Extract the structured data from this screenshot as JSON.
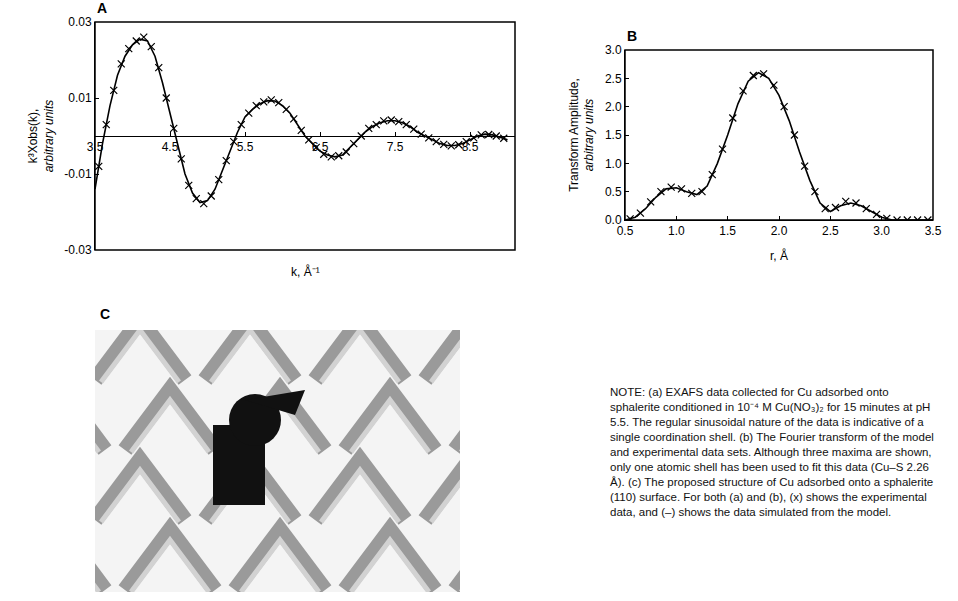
{
  "chart_data": [
    {
      "type": "scatter",
      "title": "A",
      "xlabel": "k, Å⁻¹",
      "ylabel": "k³Xobs(k), arbitrary units",
      "xlim": [
        3.5,
        9.1
      ],
      "xticks": [
        3.5,
        4.5,
        5.5,
        6.5,
        7.5,
        8.5
      ],
      "ylim": [
        -0.03,
        0.03
      ],
      "yticks": [
        -0.03,
        -0.01,
        0.01,
        0.03
      ],
      "grid": false,
      "series": [
        {
          "type": "scatter",
          "marker": "x",
          "color": "#000000",
          "x": [
            3.55,
            3.65,
            3.75,
            3.85,
            3.95,
            4.05,
            4.15,
            4.25,
            4.35,
            4.45,
            4.55,
            4.65,
            4.75,
            4.85,
            4.95,
            5.05,
            5.15,
            5.25,
            5.35,
            5.45,
            5.55,
            5.65,
            5.75,
            5.85,
            5.95,
            6.05,
            6.15,
            6.25,
            6.35,
            6.45,
            6.55,
            6.65,
            6.75,
            6.85,
            6.95,
            7.05,
            7.15,
            7.25,
            7.35,
            7.45,
            7.55,
            7.65,
            7.75,
            7.85,
            7.95,
            8.05,
            8.15,
            8.25,
            8.35,
            8.45,
            8.55,
            8.65,
            8.75,
            8.85,
            8.95
          ],
          "values": [
            -0.008,
            0.003,
            0.012,
            0.019,
            0.023,
            0.025,
            0.026,
            0.0235,
            0.018,
            0.01,
            0.002,
            -0.006,
            -0.013,
            -0.0165,
            -0.0178,
            -0.0158,
            -0.0115,
            -0.0065,
            -0.0015,
            0.003,
            0.006,
            0.008,
            0.009,
            0.0095,
            0.0088,
            0.007,
            0.0045,
            0.0015,
            -0.001,
            -0.003,
            -0.0048,
            -0.0055,
            -0.0052,
            -0.0042,
            -0.002,
            0.0,
            0.002,
            0.003,
            0.004,
            0.0042,
            0.0038,
            0.003,
            0.0018,
            0.0005,
            -0.0005,
            -0.0015,
            -0.0022,
            -0.0026,
            -0.0023,
            -0.0015,
            -0.0005,
            0.0003,
            0.0004,
            0.0,
            -0.0006
          ]
        },
        {
          "type": "line",
          "line_style": "solid",
          "color": "#000000",
          "x": [
            3.5,
            3.6,
            3.7,
            3.8,
            3.9,
            4.0,
            4.1,
            4.2,
            4.3,
            4.4,
            4.5,
            4.6,
            4.7,
            4.8,
            4.9,
            5.0,
            5.1,
            5.2,
            5.3,
            5.4,
            5.5,
            5.6,
            5.7,
            5.8,
            5.9,
            6.0,
            6.1,
            6.2,
            6.3,
            6.4,
            6.5,
            6.6,
            6.7,
            6.8,
            6.9,
            7.0,
            7.1,
            7.2,
            7.3,
            7.4,
            7.5,
            7.6,
            7.7,
            7.8,
            7.9,
            8.0,
            8.1,
            8.2,
            8.3,
            8.4,
            8.5,
            8.6,
            8.7,
            8.8,
            8.9,
            9.0
          ],
          "values": [
            -0.014,
            -0.002,
            0.008,
            0.016,
            0.021,
            0.024,
            0.0255,
            0.025,
            0.021,
            0.014,
            0.006,
            -0.002,
            -0.01,
            -0.015,
            -0.0175,
            -0.017,
            -0.014,
            -0.009,
            -0.004,
            0.001,
            0.005,
            0.007,
            0.0085,
            0.0093,
            0.0092,
            0.008,
            0.006,
            0.003,
            0.0,
            -0.002,
            -0.004,
            -0.005,
            -0.0055,
            -0.005,
            -0.003,
            -0.001,
            0.001,
            0.0025,
            0.0035,
            0.004,
            0.004,
            0.0035,
            0.0025,
            0.001,
            0.0,
            -0.001,
            -0.002,
            -0.0025,
            -0.0025,
            -0.002,
            -0.001,
            0.0,
            0.0005,
            0.0003,
            -0.0003,
            -0.001
          ]
        }
      ]
    },
    {
      "type": "scatter",
      "title": "B",
      "xlabel": "r, Å",
      "ylabel": "Transform Amplitude, arbitrary units",
      "xlim": [
        0.5,
        3.5
      ],
      "xticks": [
        {
          "value": 0.5,
          "label": "0.5"
        },
        {
          "value": 1.0,
          "label": "1.0"
        },
        {
          "value": 1.5,
          "label": "1.5"
        },
        {
          "value": 2.0,
          "label": "2.0"
        },
        {
          "value": 2.5,
          "label": "2.5"
        },
        {
          "value": 3.0,
          "label": "3.0"
        },
        {
          "value": 3.5,
          "label": "3.5"
        }
      ],
      "ylim": [
        0,
        3
      ],
      "yticks": [
        {
          "value": 0,
          "label": "0.0"
        },
        {
          "value": 0.5,
          "label": "0.5"
        },
        {
          "value": 1.0,
          "label": "1.0"
        },
        {
          "value": 1.5,
          "label": "1.5"
        },
        {
          "value": 2.0,
          "label": "2.0"
        },
        {
          "value": 2.5,
          "label": "2.5"
        },
        {
          "value": 3.0,
          "label": "3.0"
        }
      ],
      "grid": false,
      "series": [
        {
          "type": "scatter",
          "marker": "x",
          "color": "#000000",
          "x": [
            0.55,
            0.65,
            0.75,
            0.85,
            0.95,
            1.05,
            1.15,
            1.25,
            1.35,
            1.45,
            1.55,
            1.65,
            1.75,
            1.85,
            1.95,
            2.05,
            2.15,
            2.25,
            2.35,
            2.45,
            2.55,
            2.65,
            2.75,
            2.85,
            2.95,
            3.05,
            3.15,
            3.25,
            3.35,
            3.45
          ],
          "values": [
            0.02,
            0.12,
            0.32,
            0.5,
            0.58,
            0.55,
            0.47,
            0.5,
            0.8,
            1.25,
            1.8,
            2.28,
            2.55,
            2.58,
            2.38,
            2.0,
            1.5,
            0.95,
            0.5,
            0.2,
            0.22,
            0.33,
            0.3,
            0.2,
            0.1,
            0.03,
            0.0,
            0.0,
            0.0,
            0.0
          ]
        },
        {
          "type": "line",
          "line_style": "solid",
          "color": "#000000",
          "x": [
            0.5,
            0.6,
            0.7,
            0.8,
            0.9,
            1.0,
            1.1,
            1.2,
            1.3,
            1.4,
            1.5,
            1.6,
            1.7,
            1.8,
            1.9,
            2.0,
            2.1,
            2.2,
            2.3,
            2.4,
            2.5,
            2.6,
            2.7,
            2.8,
            2.9,
            3.0,
            3.1,
            3.2,
            3.3,
            3.4,
            3.5
          ],
          "values": [
            0.0,
            0.05,
            0.2,
            0.4,
            0.55,
            0.57,
            0.5,
            0.45,
            0.6,
            1.0,
            1.5,
            2.05,
            2.45,
            2.6,
            2.5,
            2.2,
            1.75,
            1.2,
            0.7,
            0.3,
            0.15,
            0.25,
            0.3,
            0.25,
            0.15,
            0.05,
            0.0,
            0.0,
            0.0,
            0.0,
            0.0
          ]
        }
      ]
    }
  ],
  "panel_c": {
    "label": "C"
  },
  "note": "NOTE: (a) EXAFS data collected for Cu adsorbed onto sphalerite conditioned in 10⁻⁴ M Cu(NO₃)₂ for 15 minutes at pH 5.5. The regular sinusoidal nature of the data is indicative of a single coordination shell. (b) The Fourier transform of the model and experimental data sets. Although three maxima are shown, only one atomic shell has been used to fit this data (Cu–S 2.26 Å). (c) The proposed structure of Cu adsorbed onto a sphalerite (110) surface. For both (a) and (b), (x) shows the experimental data, and (–) shows the data simulated from the model."
}
